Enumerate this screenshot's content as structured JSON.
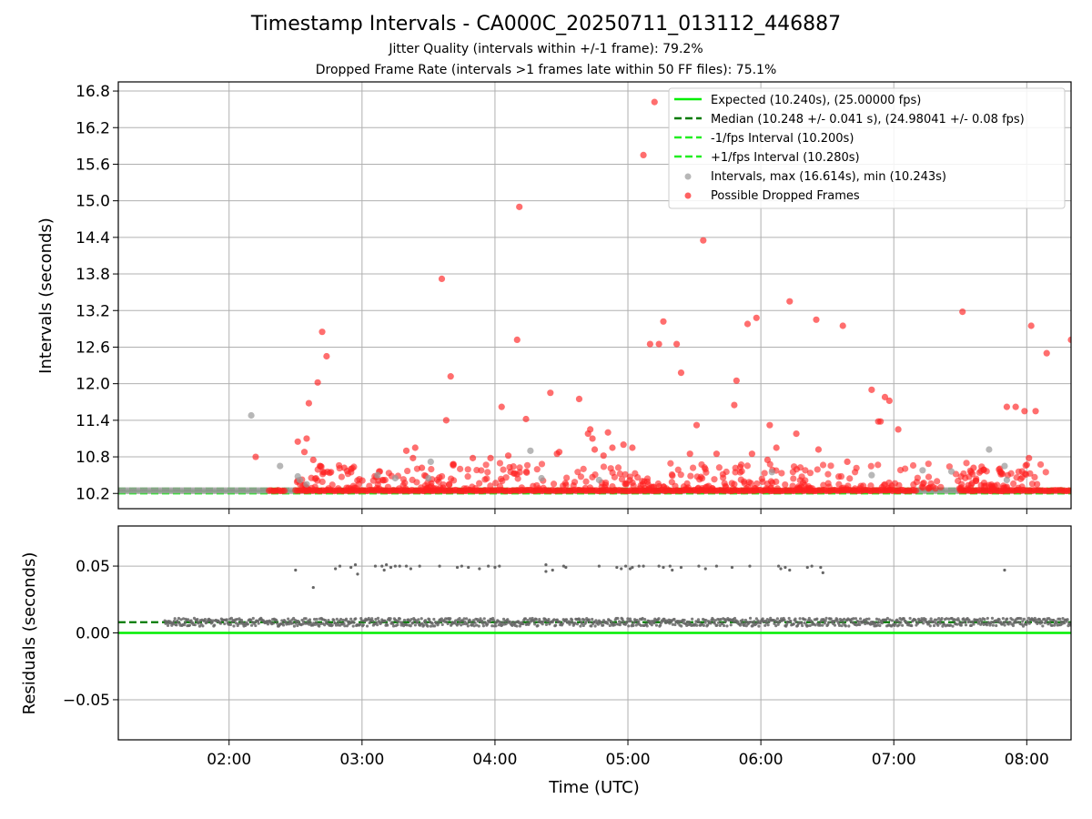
{
  "title": "Timestamp Intervals - CA000C_20250711_013112_446887",
  "subtitle1": "Jitter Quality (intervals within +/-1 frame): 79.2%",
  "subtitle2": "Dropped Frame Rate (intervals >1 frames late within 50 FF files): 75.1%",
  "chart_data": [
    {
      "type": "scatter",
      "ylabel": "Intervals (seconds)",
      "xlim": [
        "01:10",
        "08:20"
      ],
      "ylim": [
        9.95,
        16.95
      ],
      "yticks": [
        "10.2",
        "10.8",
        "11.4",
        "12.0",
        "12.6",
        "13.2",
        "13.8",
        "14.4",
        "15.0",
        "15.6",
        "16.2",
        "16.8"
      ],
      "grid": true,
      "legend_position": "upper right",
      "legend": [
        "Expected (10.240s), (25.00000 fps)",
        "Median (10.248 +/- 0.041 s), (24.98041 +/- 0.08 fps)",
        "-1/fps Interval (10.200s)",
        "+1/fps Interval (10.280s)",
        "Intervals, max (16.614s), min (10.243s)",
        "Possible Dropped Frames"
      ],
      "lines": {
        "expected": 10.24,
        "median": 10.248,
        "minus_one_fps": 10.2,
        "plus_one_fps": 10.28
      },
      "colors": {
        "expected": "#00ee00",
        "median": "#007a00",
        "interval_bound": "#22ee22",
        "intervals": "#999999",
        "dropped": "#ff2020"
      },
      "baseline": {
        "y": 10.248,
        "normal_ranges": [
          [
            "01:10",
            "02:18"
          ],
          [
            "02:25",
            "02:30"
          ],
          [
            "07:10",
            "07:30"
          ]
        ],
        "dropped_ranges": [
          [
            "02:18",
            "02:25"
          ],
          [
            "02:30",
            "07:10"
          ],
          [
            "07:30",
            "08:20"
          ]
        ]
      },
      "intervals_gray": [
        {
          "t": "02:10",
          "v": 11.48
        },
        {
          "t": "02:23",
          "v": 10.65
        },
        {
          "t": "02:31",
          "v": 10.48
        },
        {
          "t": "02:32",
          "v": 10.42
        },
        {
          "t": "02:35",
          "v": 10.35
        },
        {
          "t": "03:07",
          "v": 10.5
        },
        {
          "t": "03:15",
          "v": 10.45
        },
        {
          "t": "03:31",
          "v": 10.72
        },
        {
          "t": "03:30",
          "v": 10.45
        },
        {
          "t": "04:16",
          "v": 10.9
        },
        {
          "t": "04:21",
          "v": 10.45
        },
        {
          "t": "04:47",
          "v": 10.42
        },
        {
          "t": "06:05",
          "v": 10.55
        },
        {
          "t": "06:50",
          "v": 10.5
        },
        {
          "t": "07:13",
          "v": 10.58
        },
        {
          "t": "07:26",
          "v": 10.56
        },
        {
          "t": "07:43",
          "v": 10.92
        },
        {
          "t": "07:50",
          "v": 10.65
        },
        {
          "t": "07:51",
          "v": 10.42
        }
      ],
      "dropped": [
        {
          "t": "02:12",
          "v": 10.8
        },
        {
          "t": "02:31",
          "v": 11.05
        },
        {
          "t": "02:34",
          "v": 10.88
        },
        {
          "t": "02:35",
          "v": 11.1
        },
        {
          "t": "02:36",
          "v": 11.68
        },
        {
          "t": "02:40",
          "v": 12.02
        },
        {
          "t": "02:42",
          "v": 12.85
        },
        {
          "t": "02:44",
          "v": 12.45
        },
        {
          "t": "02:38",
          "v": 10.75
        },
        {
          "t": "02:41",
          "v": 10.65
        },
        {
          "t": "02:46",
          "v": 10.55
        },
        {
          "t": "02:52",
          "v": 10.62
        },
        {
          "t": "02:55",
          "v": 10.6
        },
        {
          "t": "03:20",
          "v": 10.9
        },
        {
          "t": "03:23",
          "v": 10.78
        },
        {
          "t": "03:24",
          "v": 10.95
        },
        {
          "t": "03:27",
          "v": 10.62
        },
        {
          "t": "03:36",
          "v": 13.72
        },
        {
          "t": "03:38",
          "v": 11.4
        },
        {
          "t": "03:40",
          "v": 12.12
        },
        {
          "t": "03:50",
          "v": 10.78
        },
        {
          "t": "03:58",
          "v": 10.78
        },
        {
          "t": "04:03",
          "v": 11.62
        },
        {
          "t": "04:06",
          "v": 10.82
        },
        {
          "t": "04:10",
          "v": 12.72
        },
        {
          "t": "04:11",
          "v": 14.9
        },
        {
          "t": "04:14",
          "v": 11.42
        },
        {
          "t": "04:25",
          "v": 11.85
        },
        {
          "t": "04:28",
          "v": 10.85
        },
        {
          "t": "04:29",
          "v": 10.88
        },
        {
          "t": "04:38",
          "v": 11.75
        },
        {
          "t": "04:42",
          "v": 11.18
        },
        {
          "t": "04:43",
          "v": 11.25
        },
        {
          "t": "04:44",
          "v": 11.1
        },
        {
          "t": "04:45",
          "v": 10.92
        },
        {
          "t": "04:49",
          "v": 10.82
        },
        {
          "t": "04:51",
          "v": 11.2
        },
        {
          "t": "04:53",
          "v": 10.95
        },
        {
          "t": "04:58",
          "v": 11.0
        },
        {
          "t": "05:02",
          "v": 10.95
        },
        {
          "t": "05:07",
          "v": 15.75
        },
        {
          "t": "05:10",
          "v": 12.65
        },
        {
          "t": "05:12",
          "v": 16.62
        },
        {
          "t": "05:14",
          "v": 12.65
        },
        {
          "t": "05:16",
          "v": 13.02
        },
        {
          "t": "05:22",
          "v": 12.65
        },
        {
          "t": "05:24",
          "v": 12.18
        },
        {
          "t": "05:28",
          "v": 10.85
        },
        {
          "t": "05:31",
          "v": 11.32
        },
        {
          "t": "05:34",
          "v": 14.35
        },
        {
          "t": "05:40",
          "v": 10.85
        },
        {
          "t": "05:49",
          "v": 12.05
        },
        {
          "t": "05:48",
          "v": 11.65
        },
        {
          "t": "05:54",
          "v": 12.98
        },
        {
          "t": "05:56",
          "v": 10.85
        },
        {
          "t": "05:58",
          "v": 13.08
        },
        {
          "t": "06:03",
          "v": 10.75
        },
        {
          "t": "06:04",
          "v": 11.32
        },
        {
          "t": "06:07",
          "v": 10.95
        },
        {
          "t": "06:13",
          "v": 13.35
        },
        {
          "t": "06:16",
          "v": 11.18
        },
        {
          "t": "06:25",
          "v": 13.05
        },
        {
          "t": "06:26",
          "v": 10.92
        },
        {
          "t": "06:37",
          "v": 12.95
        },
        {
          "t": "06:39",
          "v": 10.72
        },
        {
          "t": "06:50",
          "v": 11.9
        },
        {
          "t": "06:53",
          "v": 11.38
        },
        {
          "t": "06:54",
          "v": 11.38
        },
        {
          "t": "06:56",
          "v": 11.78
        },
        {
          "t": "06:58",
          "v": 11.72
        },
        {
          "t": "07:02",
          "v": 11.25
        },
        {
          "t": "07:31",
          "v": 13.18
        },
        {
          "t": "07:36",
          "v": 10.62
        },
        {
          "t": "07:49",
          "v": 10.52
        },
        {
          "t": "07:51",
          "v": 11.62
        },
        {
          "t": "07:55",
          "v": 11.62
        },
        {
          "t": "07:59",
          "v": 11.55
        },
        {
          "t": "08:01",
          "v": 10.78
        },
        {
          "t": "08:02",
          "v": 12.95
        },
        {
          "t": "08:04",
          "v": 11.55
        },
        {
          "t": "08:09",
          "v": 12.5
        },
        {
          "t": "08:20",
          "v": 12.72
        }
      ]
    },
    {
      "type": "scatter",
      "xlabel": "Time (UTC)",
      "ylabel": "Residuals (seconds)",
      "xlim": [
        "01:10",
        "08:20"
      ],
      "ylim": [
        -0.08,
        0.08
      ],
      "yticks": [
        "−0.05",
        "0.00",
        "0.05"
      ],
      "xticks": [
        "02:00",
        "03:00",
        "04:00",
        "05:00",
        "06:00",
        "07:00",
        "08:00"
      ],
      "grid": true,
      "lines": {
        "zero": 0.0,
        "median_residual": 0.008
      },
      "colors": {
        "zero": "#00ee00",
        "median": "#007a00",
        "residuals": "#666666"
      },
      "residual_band": {
        "center": 0.008,
        "from": "01:31",
        "to": "08:20"
      },
      "outliers": [
        {
          "t": "02:30",
          "v": 0.047
        },
        {
          "t": "02:38",
          "v": 0.034
        },
        {
          "t": "02:48",
          "v": 0.048
        },
        {
          "t": "02:50",
          "v": 0.05
        },
        {
          "t": "02:55",
          "v": 0.049
        },
        {
          "t": "02:57",
          "v": 0.051
        },
        {
          "t": "02:58",
          "v": 0.044
        },
        {
          "t": "03:06",
          "v": 0.05
        },
        {
          "t": "03:09",
          "v": 0.05
        },
        {
          "t": "03:10",
          "v": 0.047
        },
        {
          "t": "03:11",
          "v": 0.051
        },
        {
          "t": "03:13",
          "v": 0.049
        },
        {
          "t": "03:15",
          "v": 0.05
        },
        {
          "t": "03:17",
          "v": 0.05
        },
        {
          "t": "03:20",
          "v": 0.05
        },
        {
          "t": "03:22",
          "v": 0.048
        },
        {
          "t": "03:26",
          "v": 0.05
        },
        {
          "t": "03:35",
          "v": 0.05
        },
        {
          "t": "03:43",
          "v": 0.049
        },
        {
          "t": "03:45",
          "v": 0.05
        },
        {
          "t": "03:48",
          "v": 0.049
        },
        {
          "t": "03:53",
          "v": 0.048
        },
        {
          "t": "03:57",
          "v": 0.05
        },
        {
          "t": "04:00",
          "v": 0.049
        },
        {
          "t": "04:02",
          "v": 0.05
        },
        {
          "t": "04:23",
          "v": 0.051
        },
        {
          "t": "04:23",
          "v": 0.046
        },
        {
          "t": "04:26",
          "v": 0.047
        },
        {
          "t": "04:31",
          "v": 0.05
        },
        {
          "t": "04:32",
          "v": 0.049
        },
        {
          "t": "04:47",
          "v": 0.05
        },
        {
          "t": "04:55",
          "v": 0.049
        },
        {
          "t": "04:57",
          "v": 0.048
        },
        {
          "t": "04:59",
          "v": 0.05
        },
        {
          "t": "05:01",
          "v": 0.048
        },
        {
          "t": "05:02",
          "v": 0.049
        },
        {
          "t": "05:05",
          "v": 0.05
        },
        {
          "t": "05:07",
          "v": 0.05
        },
        {
          "t": "05:14",
          "v": 0.05
        },
        {
          "t": "05:16",
          "v": 0.049
        },
        {
          "t": "05:19",
          "v": 0.05
        },
        {
          "t": "05:20",
          "v": 0.047
        },
        {
          "t": "05:24",
          "v": 0.049
        },
        {
          "t": "05:32",
          "v": 0.05
        },
        {
          "t": "05:35",
          "v": 0.048
        },
        {
          "t": "05:40",
          "v": 0.05
        },
        {
          "t": "05:47",
          "v": 0.049
        },
        {
          "t": "05:55",
          "v": 0.05
        },
        {
          "t": "06:08",
          "v": 0.05
        },
        {
          "t": "06:09",
          "v": 0.048
        },
        {
          "t": "06:11",
          "v": 0.049
        },
        {
          "t": "06:13",
          "v": 0.047
        },
        {
          "t": "06:21",
          "v": 0.049
        },
        {
          "t": "06:23",
          "v": 0.05
        },
        {
          "t": "06:27",
          "v": 0.049
        },
        {
          "t": "06:28",
          "v": 0.045
        },
        {
          "t": "07:50",
          "v": 0.047
        }
      ]
    }
  ]
}
